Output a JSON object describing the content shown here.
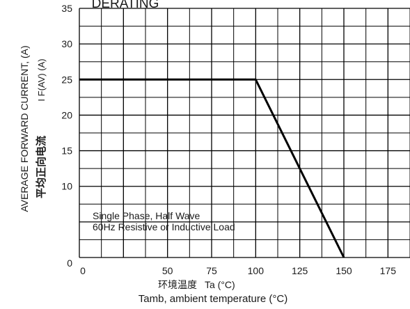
{
  "chart_data": {
    "type": "line",
    "title": "DERATING",
    "xlabel": "Tamb, ambient temperature (°C)",
    "xlabel_cn": "环境温度",
    "xlabel_symbol": "Ta (°C)",
    "ylabel": "AVERAGE FORWARD CURRENT, (A)",
    "ylabel_cn": "平均正向电流",
    "ylabel_symbol": "I F(AV) (A)",
    "xlim": [
      0,
      187.5
    ],
    "ylim": [
      0,
      35
    ],
    "x_ticks": [
      0,
      50,
      75,
      100,
      125,
      150,
      175
    ],
    "x_tick_labels": [
      "0",
      "50",
      "75",
      "100",
      "125",
      "150",
      "175"
    ],
    "y_ticks": [
      0,
      10,
      15,
      20,
      25,
      30,
      35
    ],
    "y_tick_labels": [
      "0",
      "10",
      "15",
      "20",
      "25",
      "30",
      "35"
    ],
    "grid": true,
    "series": [
      {
        "x": [
          0,
          100,
          150
        ],
        "y": [
          25,
          25,
          0
        ]
      }
    ],
    "annotations": [
      "Single Phase, Half Wave",
      "60Hz Resistive or Inductive Load"
    ],
    "colors": {
      "line": "#000000",
      "grid": "#000000",
      "background": "#ffffff"
    }
  }
}
